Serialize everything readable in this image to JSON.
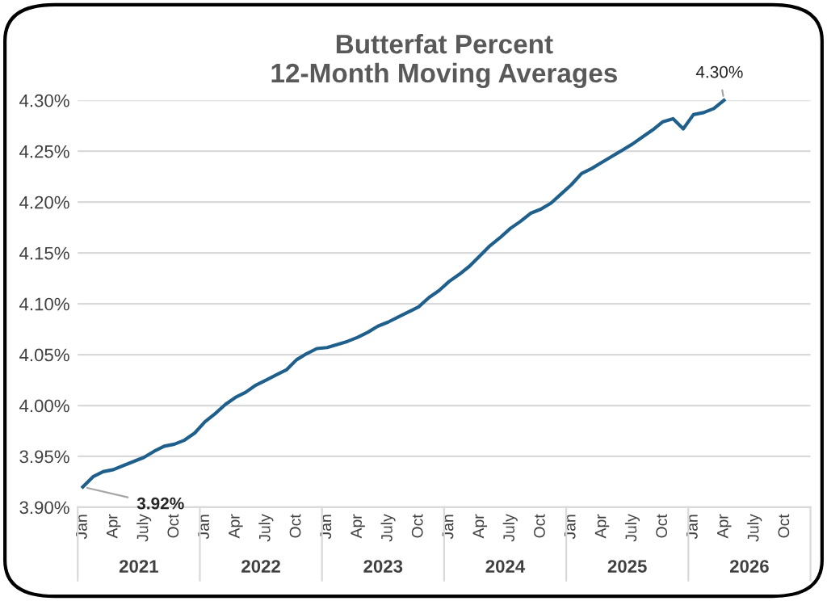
{
  "chart_data": {
    "type": "line",
    "title": "Butterfat Percent\n12-Month Moving Averages",
    "categories": [
      "Jan",
      null,
      null,
      "Apr",
      null,
      null,
      "July",
      null,
      null,
      "Oct",
      null,
      null,
      "Jan",
      null,
      null,
      "Apr",
      null,
      null,
      "July",
      null,
      null,
      "Oct",
      null,
      null,
      "Jan",
      null,
      null,
      "Apr",
      null,
      null,
      "July",
      null,
      null,
      "Oct",
      null,
      null,
      "Jan",
      null,
      null,
      "Apr",
      null,
      null,
      "July",
      null,
      null,
      "Oct",
      null,
      null,
      "Jan",
      null,
      null,
      "Apr",
      null,
      null,
      "July",
      null,
      null,
      "Oct",
      null,
      null,
      "Jan",
      null,
      null,
      "Apr",
      null,
      null,
      "July",
      null,
      null,
      "Oct",
      null,
      null
    ],
    "series": [
      {
        "color": "#1f5f8b",
        "values": [
          3.92,
          3.93,
          3.935,
          3.937,
          3.941,
          3.945,
          3.949,
          3.955,
          3.96,
          3.962,
          3.966,
          3.973,
          3.984,
          3.992,
          4.001,
          4.008,
          4.013,
          4.02,
          4.025,
          4.03,
          4.035,
          4.045,
          4.051,
          4.056,
          4.057,
          4.06,
          4.063,
          4.067,
          4.072,
          4.078,
          4.082,
          4.087,
          4.092,
          4.097,
          4.106,
          4.113,
          4.122,
          4.129,
          4.137,
          4.147,
          4.157,
          4.165,
          4.174,
          4.181,
          4.189,
          4.193,
          4.199,
          4.208,
          4.217,
          4.228,
          4.233,
          4.239,
          4.245,
          4.251,
          4.257,
          4.264,
          4.271,
          4.279,
          4.282,
          4.272,
          4.286,
          4.288,
          4.292,
          4.3,
          null,
          null,
          null,
          null,
          null,
          null,
          null,
          null
        ],
        "value_labels": [
          "3.92%",
          null,
          null,
          null,
          null,
          null,
          null,
          null,
          null,
          null,
          null,
          null,
          null,
          null,
          null,
          null,
          null,
          null,
          null,
          null,
          null,
          null,
          null,
          null,
          null,
          null,
          null,
          null,
          null,
          null,
          null,
          null,
          null,
          null,
          null,
          null,
          null,
          null,
          null,
          null,
          null,
          null,
          null,
          null,
          null,
          null,
          null,
          null,
          null,
          null,
          null,
          null,
          null,
          null,
          null,
          null,
          null,
          null,
          null,
          null,
          null,
          null,
          null,
          "4.30%",
          null,
          null,
          null,
          null,
          null,
          null,
          null,
          null
        ]
      }
    ],
    "ylim": [
      3.9,
      4.3
    ],
    "yticks": [
      {
        "value": 3.9,
        "label": "3.90%"
      },
      {
        "value": 3.95,
        "label": "3.95%"
      },
      {
        "value": 4.0,
        "label": "4.00%"
      },
      {
        "value": 4.05,
        "label": "4.05%"
      },
      {
        "value": 4.1,
        "label": "4.10%"
      },
      {
        "value": 4.15,
        "label": "4.15%"
      },
      {
        "value": 4.2,
        "label": "4.20%"
      },
      {
        "value": 4.25,
        "label": "4.25%"
      },
      {
        "value": 4.3,
        "label": "4.30%"
      }
    ],
    "grid": "y",
    "annotations": [
      "2021",
      "2022",
      "2023",
      "2024",
      "2025",
      "2026"
    ]
  }
}
